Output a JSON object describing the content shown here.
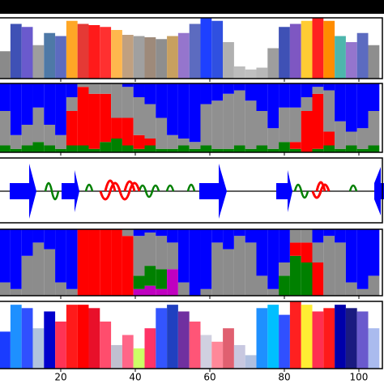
{
  "chart_data": [
    {
      "type": "bar",
      "xlim": [
        3.7,
        106
      ],
      "ylim": [
        0,
        1
      ],
      "x": [
        5,
        8,
        11,
        14,
        17,
        20,
        23,
        26,
        29,
        32,
        35,
        38,
        41,
        44,
        47,
        50,
        53,
        56,
        59,
        62,
        65,
        68,
        71,
        74,
        77,
        80,
        83,
        86,
        89,
        92,
        95,
        98,
        101,
        104
      ],
      "values": [
        0.45,
        0.9,
        0.85,
        0.55,
        0.75,
        0.7,
        0.95,
        0.9,
        0.88,
        0.85,
        0.8,
        0.72,
        0.7,
        0.68,
        0.65,
        0.7,
        0.75,
        0.9,
        1.0,
        0.95,
        0.6,
        0.2,
        0.15,
        0.18,
        0.5,
        0.85,
        0.9,
        0.95,
        1.0,
        0.95,
        0.7,
        0.6,
        0.75,
        0.55
      ],
      "colors": [
        "#8a8a8a",
        "#3f51b5",
        "#6a5acd",
        "#9e9e9e",
        "#4e79a7",
        "#5c6bc0",
        "#ffa726",
        "#e53935",
        "#ff1a1a",
        "#ff3030",
        "#ffb74d",
        "#c0a080",
        "#a0a0a0",
        "#9e8a7a",
        "#8e8e8e",
        "#c8a060",
        "#9575cd",
        "#5c6bc0",
        "#1e40ff",
        "#3050e0",
        "#b0b0b0",
        "#bdbdbd",
        "#c0c0c0",
        "#b8b8b8",
        "#9e9e9e",
        "#3f51b5",
        "#7e57c2",
        "#ffcc33",
        "#ff2020",
        "#ff8c00",
        "#4db6ac",
        "#9575cd",
        "#5c6bc0",
        "#8e8e8e"
      ]
    },
    {
      "type": "stacked",
      "xlim": [
        3.7,
        106
      ],
      "ylim": [
        0,
        1
      ],
      "x": [
        5,
        8,
        11,
        14,
        17,
        20,
        23,
        26,
        29,
        32,
        35,
        38,
        41,
        44,
        47,
        50,
        53,
        56,
        59,
        62,
        65,
        68,
        71,
        74,
        77,
        80,
        83,
        86,
        89,
        92,
        95,
        98,
        101,
        104
      ],
      "series": [
        {
          "color": "#008000",
          "values": [
            0.1,
            0.05,
            0.1,
            0.15,
            0.1,
            0.05,
            0.1,
            0.1,
            0.05,
            0.15,
            0.2,
            0.1,
            0.05,
            0.1,
            0.05,
            0.05,
            0.1,
            0.05,
            0.1,
            0.05,
            0.05,
            0.1,
            0.05,
            0.1,
            0.05,
            0.15,
            0.05,
            0,
            0.05,
            0.1,
            0.05,
            0.1,
            0.05,
            0.1
          ]
        },
        {
          "color": "#ff0000",
          "values": [
            0,
            0,
            0,
            0,
            0,
            0,
            0.5,
            0.85,
            0.8,
            0.7,
            0.3,
            0.4,
            0.2,
            0.1,
            0,
            0,
            0,
            0,
            0,
            0,
            0,
            0,
            0,
            0,
            0,
            0,
            0.1,
            0.6,
            0.8,
            0.2,
            0,
            0,
            0,
            0
          ]
        },
        {
          "color": "#909090",
          "values": [
            0.5,
            0.2,
            0.3,
            0.5,
            0.3,
            0.2,
            0.2,
            0.05,
            0.15,
            0.15,
            0.5,
            0.45,
            0.55,
            0.5,
            0.45,
            0.2,
            0.1,
            0.1,
            0.6,
            0.7,
            0.8,
            0.8,
            0.7,
            0.5,
            0.3,
            0.5,
            0.5,
            0.2,
            0.1,
            0.6,
            0.4,
            0.2,
            0.3,
            0.5
          ]
        },
        {
          "color": "#0000ff",
          "values": [
            0.4,
            0.75,
            0.6,
            0.35,
            0.6,
            0.75,
            0.2,
            0,
            0,
            0,
            0,
            0.05,
            0.2,
            0.3,
            0.5,
            0.75,
            0.8,
            0.85,
            0.3,
            0.25,
            0.15,
            0.1,
            0.25,
            0.4,
            0.65,
            0.35,
            0.35,
            0.2,
            0.05,
            0.1,
            0.55,
            0.7,
            0.65,
            0.4
          ]
        }
      ]
    },
    {
      "type": "stacked",
      "xlim": [
        3.7,
        106
      ],
      "ylim": [
        0,
        1
      ],
      "x": [
        5,
        8,
        11,
        14,
        17,
        20,
        23,
        26,
        29,
        32,
        35,
        38,
        41,
        44,
        47,
        50,
        53,
        56,
        59,
        62,
        65,
        68,
        71,
        74,
        77,
        80,
        83,
        86,
        89,
        92,
        95,
        98,
        101,
        104
      ],
      "series": [
        {
          "color": "#c000c0",
          "values": [
            0,
            0,
            0,
            0,
            0,
            0,
            0,
            0,
            0,
            0,
            0,
            0,
            0.1,
            0.15,
            0.1,
            0.4,
            0,
            0,
            0,
            0,
            0,
            0,
            0,
            0,
            0,
            0,
            0,
            0,
            0,
            0,
            0,
            0,
            0,
            0
          ]
        },
        {
          "color": "#008000",
          "values": [
            0,
            0,
            0,
            0,
            0,
            0,
            0,
            0,
            0,
            0,
            0,
            0,
            0.2,
            0.3,
            0.3,
            0,
            0,
            0,
            0,
            0,
            0,
            0,
            0,
            0,
            0,
            0.3,
            0.6,
            0.5,
            0,
            0,
            0,
            0,
            0,
            0
          ]
        },
        {
          "color": "#ff0000",
          "values": [
            0,
            0,
            0,
            0,
            0,
            0,
            0,
            1,
            1,
            1,
            1,
            0.9,
            0,
            0,
            0,
            0,
            0,
            0,
            0,
            0,
            0,
            0,
            0,
            0,
            0,
            0,
            0.2,
            0.3,
            0.5,
            0,
            0,
            0,
            0,
            0
          ]
        },
        {
          "color": "#8c8c8c",
          "values": [
            0.2,
            0.1,
            0.6,
            0.8,
            0.7,
            0.2,
            0.1,
            0,
            0,
            0,
            0,
            0.1,
            0.6,
            0.5,
            0.5,
            0.4,
            0.2,
            0,
            0.1,
            0.8,
            0.7,
            0.9,
            0.8,
            0.3,
            0.1,
            0.2,
            0.2,
            0.2,
            0.3,
            0.9,
            0.8,
            0.2,
            0.1,
            0.3
          ]
        },
        {
          "color": "#0000ff",
          "values": [
            0.8,
            0.9,
            0.4,
            0.2,
            0.3,
            0.8,
            0.9,
            0,
            0,
            0,
            0,
            0,
            0.1,
            0.05,
            0.1,
            0.2,
            0.8,
            1,
            0.9,
            0.2,
            0.3,
            0.1,
            0.2,
            0.7,
            0.9,
            0.5,
            0,
            0,
            0.2,
            0.1,
            0.2,
            0.8,
            0.9,
            0.7
          ]
        }
      ]
    },
    {
      "type": "bar",
      "xlim": [
        3.7,
        106
      ],
      "ylim": [
        0,
        1
      ],
      "xticks": [
        20,
        40,
        60,
        80,
        100
      ],
      "x": [
        5,
        8,
        11,
        14,
        17,
        20,
        23,
        26,
        29,
        32,
        35,
        38,
        41,
        44,
        47,
        50,
        53,
        56,
        59,
        62,
        65,
        68,
        71,
        74,
        77,
        80,
        83,
        86,
        89,
        92,
        95,
        98,
        101,
        104
      ],
      "values": [
        0.55,
        0.95,
        0.9,
        0.6,
        0.85,
        0.7,
        0.95,
        0.95,
        0.9,
        0.7,
        0.35,
        0.5,
        0.3,
        0.6,
        0.9,
        0.95,
        0.85,
        0.7,
        0.5,
        0.4,
        0.6,
        0.35,
        0.2,
        0.9,
        0.95,
        0.8,
        1.0,
        0.95,
        0.85,
        0.9,
        0.95,
        0.9,
        0.85,
        0.6
      ],
      "colors": [
        "#1a3cff",
        "#1e90ff",
        "#3050ff",
        "#b0c4de",
        "#0000cd",
        "#ff3355",
        "#ff1a1a",
        "#ff0000",
        "#e8102a",
        "#ff4d6d",
        "#c0c0d0",
        "#ff6688",
        "#ccff66",
        "#ff3366",
        "#3355ff",
        "#2040c0",
        "#7030a0",
        "#ff5577",
        "#d0d0e0",
        "#ff8899",
        "#e06070",
        "#c8c8e0",
        "#b0c0e0",
        "#1e90ff",
        "#00bfff",
        "#3050ff",
        "#ff2020",
        "#ffee33",
        "#ff3050",
        "#ff1a1a",
        "#0000aa",
        "#1a1a80",
        "#6a5acd",
        "#aabbee"
      ]
    }
  ]
}
